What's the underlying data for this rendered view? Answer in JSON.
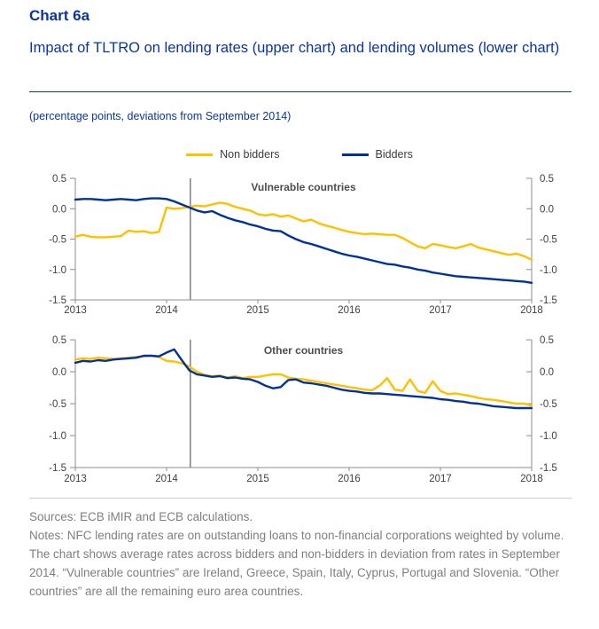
{
  "header": {
    "chart_number": "Chart 6a",
    "title": "Impact of TLTRO on lending rates (upper chart) and lending volumes (lower chart)",
    "unit_note": "(percentage points, deviations from September 2014)"
  },
  "colors": {
    "heading_blue": "#0a35a0",
    "non_bidders_yellow": "#FFC000",
    "bidders_blue": "#003299",
    "axis_gray": "#8c8c8c",
    "tick_label_gray": "#3f3f3f",
    "panel_label_gray": "#4d4d4d",
    "event_line_gray": "#7f7f7f",
    "footer_gray": "#7f7f7f"
  },
  "legend": [
    {
      "label": "Non bidders",
      "color": "#FFC000"
    },
    {
      "label": "Bidders",
      "color": "#003299"
    }
  ],
  "chart_data": [
    {
      "type": "line",
      "title": "Vulnerable countries",
      "x_start": 2013.0,
      "x_step_months": 1,
      "xlim": [
        2013,
        2018
      ],
      "ylim": [
        -1.5,
        0.5
      ],
      "x_ticks": [
        2013,
        2014,
        2015,
        2016,
        2017,
        2018
      ],
      "y_ticks": [
        0.5,
        0.0,
        -0.5,
        -1.0,
        -1.5
      ],
      "vline_x": 2014.26,
      "grid": false,
      "series": [
        {
          "name": "Non bidders",
          "color": "#FFC000",
          "values": [
            -0.46,
            -0.43,
            -0.46,
            -0.47,
            -0.47,
            -0.46,
            -0.45,
            -0.36,
            -0.38,
            -0.37,
            -0.4,
            -0.38,
            0.02,
            0.0,
            0.01,
            0.03,
            0.05,
            0.04,
            0.07,
            0.1,
            0.08,
            0.03,
            0.0,
            -0.03,
            -0.09,
            -0.11,
            -0.09,
            -0.13,
            -0.11,
            -0.16,
            -0.21,
            -0.18,
            -0.24,
            -0.28,
            -0.31,
            -0.35,
            -0.38,
            -0.4,
            -0.42,
            -0.41,
            -0.42,
            -0.43,
            -0.43,
            -0.48,
            -0.55,
            -0.62,
            -0.65,
            -0.58,
            -0.6,
            -0.63,
            -0.65,
            -0.62,
            -0.58,
            -0.64,
            -0.67,
            -0.7,
            -0.73,
            -0.76,
            -0.74,
            -0.78,
            -0.84
          ]
        },
        {
          "name": "Bidders",
          "color": "#003299",
          "values": [
            0.15,
            0.16,
            0.16,
            0.15,
            0.14,
            0.15,
            0.16,
            0.15,
            0.14,
            0.16,
            0.17,
            0.17,
            0.16,
            0.12,
            0.07,
            0.02,
            -0.03,
            -0.06,
            -0.04,
            -0.1,
            -0.15,
            -0.19,
            -0.22,
            -0.26,
            -0.29,
            -0.33,
            -0.36,
            -0.37,
            -0.44,
            -0.5,
            -0.55,
            -0.58,
            -0.62,
            -0.66,
            -0.7,
            -0.74,
            -0.77,
            -0.79,
            -0.82,
            -0.85,
            -0.88,
            -0.91,
            -0.92,
            -0.95,
            -0.97,
            -1.0,
            -1.02,
            -1.05,
            -1.07,
            -1.09,
            -1.11,
            -1.12,
            -1.13,
            -1.14,
            -1.15,
            -1.16,
            -1.17,
            -1.18,
            -1.19,
            -1.2,
            -1.22
          ]
        }
      ]
    },
    {
      "type": "line",
      "title": "Other countries",
      "x_start": 2013.0,
      "x_step_months": 1,
      "xlim": [
        2013,
        2018
      ],
      "ylim": [
        -1.5,
        0.5
      ],
      "x_ticks": [
        2013,
        2014,
        2015,
        2016,
        2017,
        2018
      ],
      "y_ticks": [
        0.5,
        0.0,
        -0.5,
        -1.0,
        -1.5
      ],
      "vline_x": 2014.26,
      "grid": false,
      "series": [
        {
          "name": "Non bidders",
          "color": "#FFC000",
          "values": [
            0.19,
            0.21,
            0.2,
            0.22,
            0.21,
            0.2,
            0.21,
            0.22,
            0.23,
            0.24,
            0.25,
            0.23,
            0.17,
            0.16,
            0.13,
            0.08,
            0.0,
            -0.05,
            -0.07,
            -0.06,
            -0.09,
            -0.07,
            -0.1,
            -0.08,
            -0.08,
            -0.06,
            -0.04,
            -0.04,
            -0.09,
            -0.11,
            -0.12,
            -0.14,
            -0.16,
            -0.18,
            -0.2,
            -0.22,
            -0.24,
            -0.26,
            -0.28,
            -0.29,
            -0.22,
            -0.1,
            -0.28,
            -0.3,
            -0.12,
            -0.3,
            -0.33,
            -0.15,
            -0.3,
            -0.35,
            -0.34,
            -0.36,
            -0.38,
            -0.41,
            -0.43,
            -0.44,
            -0.46,
            -0.48,
            -0.5,
            -0.5,
            -0.53
          ]
        },
        {
          "name": "Bidders",
          "color": "#003299",
          "values": [
            0.14,
            0.17,
            0.16,
            0.18,
            0.17,
            0.19,
            0.2,
            0.21,
            0.22,
            0.25,
            0.25,
            0.24,
            0.3,
            0.35,
            0.18,
            0.02,
            -0.04,
            -0.06,
            -0.08,
            -0.07,
            -0.1,
            -0.09,
            -0.11,
            -0.12,
            -0.16,
            -0.22,
            -0.26,
            -0.24,
            -0.13,
            -0.12,
            -0.17,
            -0.18,
            -0.2,
            -0.22,
            -0.25,
            -0.28,
            -0.3,
            -0.31,
            -0.33,
            -0.34,
            -0.34,
            -0.35,
            -0.36,
            -0.37,
            -0.38,
            -0.39,
            -0.4,
            -0.41,
            -0.43,
            -0.44,
            -0.46,
            -0.47,
            -0.49,
            -0.5,
            -0.52,
            -0.54,
            -0.55,
            -0.56,
            -0.57,
            -0.57,
            -0.57
          ]
        }
      ]
    }
  ],
  "footer": {
    "sources": "Sources: ECB iMIR and ECB calculations.",
    "notes": "Notes: NFC lending rates are on outstanding loans to non-financial corporations weighted by volume. The chart shows average rates across bidders and non-bidders in deviation from rates in September 2014. “Vulnerable countries” are Ireland, Greece, Spain, Italy, Cyprus, Portugal and Slovenia. “Other countries” are all the remaining euro area countries."
  }
}
